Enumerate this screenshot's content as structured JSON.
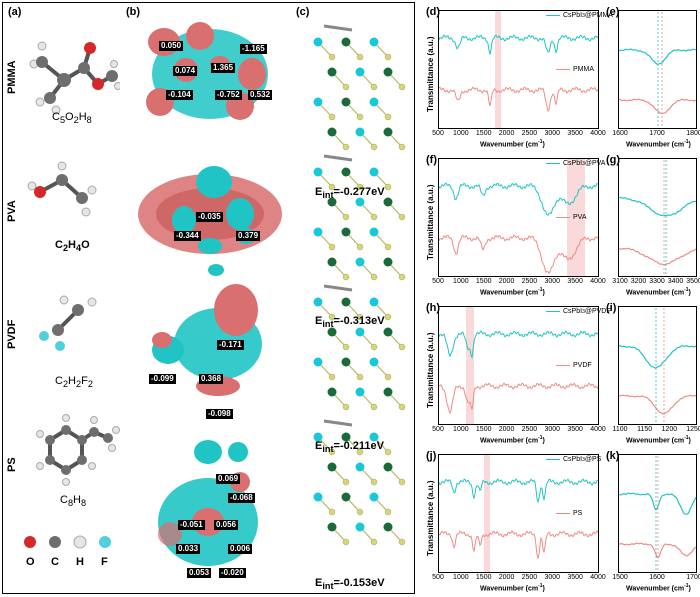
{
  "panel_labels": {
    "a": "(a)",
    "b": "(b)",
    "c": "(c)",
    "d": "(d)",
    "e": "(e)",
    "f": "(f)",
    "g": "(g)",
    "h": "(h)",
    "i": "(i)",
    "j": "(j)",
    "k": "(k)"
  },
  "polymers": [
    {
      "name": "PMMA",
      "formula_parts": [
        "C",
        "5",
        "O",
        "2",
        "H",
        "8"
      ],
      "e_int_prefix": "E",
      "e_int_sub": "int",
      "e_int_value": "=-0.277eV",
      "charges": [
        "0.050",
        "-1.165",
        "0.074",
        "1.365",
        "-0.104",
        "-0.752",
        "0.532"
      ]
    },
    {
      "name": "PVA",
      "formula_parts": [
        "C",
        "2",
        "H",
        "4",
        "O",
        ""
      ],
      "e_int_prefix": "E",
      "e_int_sub": "int",
      "e_int_value": "=-0.313eV",
      "charges": [
        "-0.035",
        "-0.344",
        "0.379"
      ]
    },
    {
      "name": "PVDF",
      "formula_parts": [
        "C",
        "2",
        "H",
        "2",
        "F",
        "2"
      ],
      "e_int_prefix": "E",
      "e_int_sub": "int",
      "e_int_value": "=-0.211eV",
      "charges": [
        "-0.171",
        "-0.099",
        "0.368",
        "-0.098"
      ]
    },
    {
      "name": "PS",
      "formula_parts": [
        "C",
        "8",
        "H",
        "8",
        "",
        ""
      ],
      "e_int_prefix": "E",
      "e_int_sub": "int",
      "e_int_value": "=-0.153eV",
      "charges": [
        "0.069",
        "-0.068",
        "-0.051",
        "0.056",
        "0.033",
        "0.006",
        "0.053",
        "-0.020"
      ]
    }
  ],
  "atom_legend": [
    {
      "symbol": "O",
      "color": "#d62828"
    },
    {
      "symbol": "C",
      "color": "#6e6e6e"
    },
    {
      "symbol": "H",
      "color": "#e6e6e6"
    },
    {
      "symbol": "F",
      "color": "#4fd1d9"
    }
  ],
  "colors": {
    "composite": "#21c4c4",
    "polymer": "#ee8c86",
    "highlight": "#f7c9c9",
    "cs": "#17c9d6",
    "pb": "#1b6b3a",
    "i": "#d8d86a"
  },
  "spectra": {
    "ylabel": "Transmittance (a.u.)",
    "xlabel_main": "Wavenumber (cm",
    "xlabel_sup": "-1",
    "xlabel_end": ")",
    "xlabel_short_main": "Wavenumber (cm",
    "xlabel_short_end": ")",
    "main_ticks": [
      "500",
      "1000",
      "1500",
      "2000",
      "2500",
      "3000",
      "3500",
      "4000"
    ],
    "rows": [
      {
        "composite_label": "CsPbI",
        "composite_sub": "3",
        "composite_end": "@PMMA",
        "polymer_label": "PMMA",
        "inset_ticks": [
          "1600",
          "1700",
          "1800"
        ]
      },
      {
        "composite_label": "CsPbI",
        "composite_sub": "3",
        "composite_end": "@PVA",
        "polymer_label": "PVA",
        "inset_ticks": [
          "3100",
          "3200",
          "3300",
          "3400",
          "3500"
        ]
      },
      {
        "composite_label": "CsPbI",
        "composite_sub": "3",
        "composite_end": "@PVDF",
        "polymer_label": "PVDF",
        "inset_ticks": [
          "1100",
          "1150",
          "1200",
          "1250"
        ]
      },
      {
        "composite_label": "CsPbI",
        "composite_sub": "3",
        "composite_end": "@PS",
        "polymer_label": "PS",
        "inset_ticks": [
          "1500",
          "1600",
          "1700"
        ]
      }
    ]
  }
}
